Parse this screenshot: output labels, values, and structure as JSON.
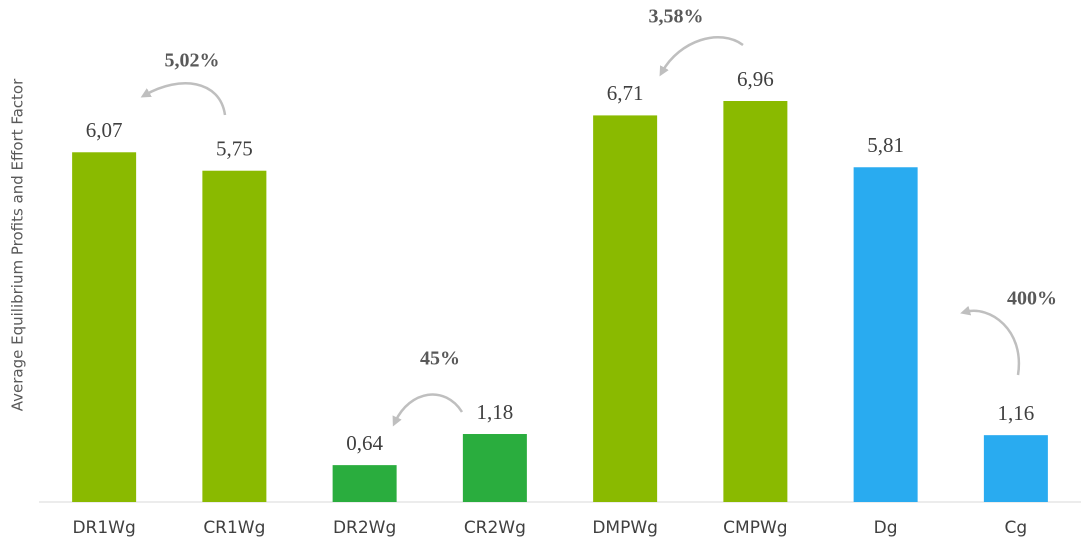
{
  "chart_data": {
    "type": "bar",
    "y_label": "Average Equilibrium Profits and Effort Factor",
    "categories": [
      "DR1Wg",
      "CR1Wg",
      "DR2Wg",
      "CR2Wg",
      "DMPWg",
      "CMPWg",
      "Dg",
      "Cg"
    ],
    "values": [
      6.07,
      5.75,
      0.64,
      1.18,
      6.71,
      6.96,
      5.81,
      1.16
    ],
    "value_labels": [
      "6,07",
      "5,75",
      "0,64",
      "1,18",
      "6,71",
      "6,96",
      "5,81",
      "1,16"
    ],
    "colors": [
      "#8aba00",
      "#8aba00",
      "#2aad3e",
      "#2aad3e",
      "#8aba00",
      "#8aba00",
      "#29abf0",
      "#29abf0"
    ],
    "annotations": [
      "5,02%",
      "45%",
      "3,58%",
      "400%"
    ]
  }
}
